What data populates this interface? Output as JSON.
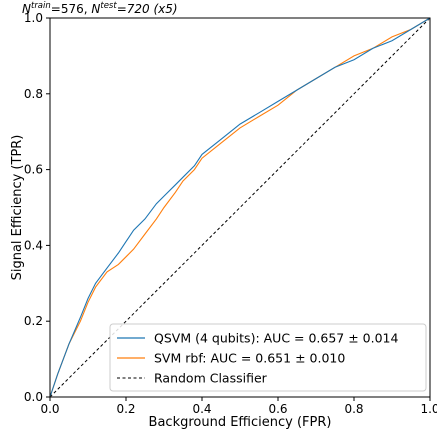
{
  "chart_data": {
    "type": "line",
    "title": {
      "n_train_label": "N",
      "n_train_sup": "train",
      "n_train_value": "=576, ",
      "n_test_label": "N",
      "n_test_sup": "test",
      "n_test_value": "=720 (x5)"
    },
    "xlabel": "Background Efficiency (FPR)",
    "ylabel": "Signal Efficiency (TPR)",
    "xlim": [
      0.0,
      1.0
    ],
    "ylim": [
      0.0,
      1.0
    ],
    "x_ticks": [
      "0.0",
      "0.2",
      "0.4",
      "0.6",
      "0.8",
      "1.0"
    ],
    "y_ticks": [
      "0.0",
      "0.2",
      "0.4",
      "0.6",
      "0.8",
      "1.0"
    ],
    "grid": false,
    "legend_position": "lower-right",
    "series": [
      {
        "name": "QSVM (4 qubits): AUC = 0.657 ± 0.014",
        "color": "#1f77b4",
        "style": "solid",
        "x": [
          0.0,
          0.02,
          0.05,
          0.08,
          0.1,
          0.12,
          0.15,
          0.18,
          0.2,
          0.22,
          0.25,
          0.28,
          0.3,
          0.33,
          0.35,
          0.38,
          0.4,
          0.45,
          0.5,
          0.55,
          0.6,
          0.65,
          0.7,
          0.75,
          0.8,
          0.85,
          0.9,
          0.95,
          1.0
        ],
        "y": [
          0.0,
          0.06,
          0.14,
          0.21,
          0.26,
          0.3,
          0.34,
          0.38,
          0.41,
          0.44,
          0.47,
          0.51,
          0.53,
          0.56,
          0.58,
          0.61,
          0.64,
          0.68,
          0.72,
          0.75,
          0.78,
          0.81,
          0.84,
          0.87,
          0.89,
          0.92,
          0.94,
          0.97,
          1.0
        ]
      },
      {
        "name": "SVM rbf: AUC = 0.651 ± 0.010",
        "color": "#ff7f0e",
        "style": "solid",
        "x": [
          0.0,
          0.02,
          0.05,
          0.08,
          0.1,
          0.12,
          0.15,
          0.18,
          0.2,
          0.22,
          0.25,
          0.28,
          0.3,
          0.33,
          0.35,
          0.38,
          0.4,
          0.45,
          0.5,
          0.55,
          0.6,
          0.65,
          0.7,
          0.75,
          0.8,
          0.85,
          0.9,
          0.95,
          1.0
        ],
        "y": [
          0.0,
          0.06,
          0.14,
          0.2,
          0.25,
          0.29,
          0.33,
          0.35,
          0.37,
          0.39,
          0.43,
          0.47,
          0.5,
          0.54,
          0.57,
          0.6,
          0.63,
          0.67,
          0.71,
          0.74,
          0.77,
          0.81,
          0.84,
          0.87,
          0.9,
          0.92,
          0.95,
          0.97,
          1.0
        ]
      },
      {
        "name": "Random Classifier",
        "color": "#000000",
        "style": "dashed",
        "x": [
          0.0,
          1.0
        ],
        "y": [
          0.0,
          1.0
        ]
      }
    ]
  }
}
